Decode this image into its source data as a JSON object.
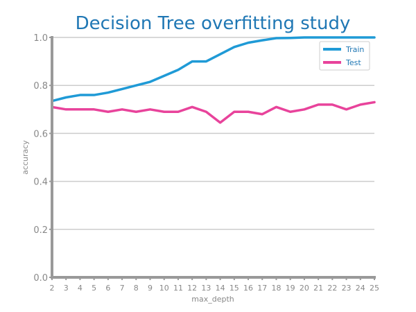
{
  "chart_data": {
    "type": "line",
    "title": "Decision Tree overfitting study",
    "xlabel": "max_depth",
    "ylabel": "accuracy",
    "x": [
      2,
      3,
      4,
      5,
      6,
      7,
      8,
      9,
      10,
      11,
      12,
      13,
      14,
      15,
      16,
      17,
      18,
      19,
      20,
      21,
      22,
      23,
      24,
      25
    ],
    "xlim": [
      2,
      25
    ],
    "ylim": [
      0.0,
      1.0
    ],
    "yticks": [
      "0.0",
      "0.2",
      "0.4",
      "0.6",
      "0.8",
      "1.0"
    ],
    "ytick_values": [
      0.0,
      0.2,
      0.4,
      0.6,
      0.8,
      1.0
    ],
    "grid": "horizontal",
    "legend_position": "top-right",
    "series": [
      {
        "name": "Train",
        "color": "#1f9ad6",
        "values": [
          0.735,
          0.75,
          0.76,
          0.76,
          0.77,
          0.785,
          0.8,
          0.815,
          0.84,
          0.865,
          0.9,
          0.9,
          0.93,
          0.96,
          0.978,
          0.988,
          0.997,
          0.998,
          1.0,
          1.0,
          1.0,
          1.0,
          1.0,
          1.0
        ]
      },
      {
        "name": "Test",
        "color": "#e8439b",
        "values": [
          0.71,
          0.7,
          0.7,
          0.7,
          0.69,
          0.7,
          0.69,
          0.7,
          0.69,
          0.69,
          0.71,
          0.69,
          0.645,
          0.69,
          0.69,
          0.68,
          0.71,
          0.69,
          0.7,
          0.72,
          0.72,
          0.7,
          0.72,
          0.73
        ]
      }
    ],
    "colors": {
      "title": "#1f77b4",
      "axis": "#999999",
      "grid": "#cccccc",
      "tick_text": "#888888",
      "legend_text": "#1f77b4"
    }
  }
}
